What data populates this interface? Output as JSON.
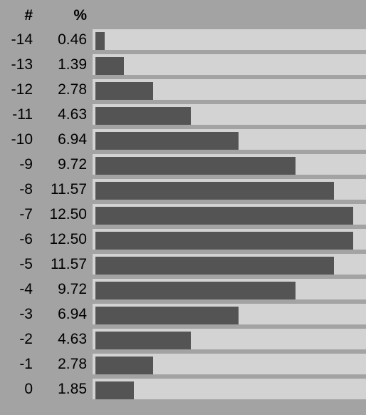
{
  "header": {
    "num_label": "#",
    "pct_label": "%"
  },
  "chart_data": {
    "type": "bar",
    "orientation": "horizontal",
    "categories": [
      "-14",
      "-13",
      "-12",
      "-11",
      "-10",
      "-9",
      "-8",
      "-7",
      "-6",
      "-5",
      "-4",
      "-3",
      "-2",
      "-1",
      "0"
    ],
    "value_labels": [
      "0.46",
      "1.39",
      "2.78",
      "4.63",
      "6.94",
      "9.72",
      "11.57",
      "12.50",
      "12.50",
      "11.57",
      "9.72",
      "6.94",
      "4.63",
      "2.78",
      "1.85"
    ],
    "values": [
      0.46,
      1.39,
      2.78,
      4.63,
      6.94,
      9.72,
      11.57,
      12.5,
      12.5,
      11.57,
      9.72,
      6.94,
      4.63,
      2.78,
      1.85
    ],
    "xlim": [
      0,
      12.5
    ],
    "colors": {
      "background": "#a3a3a3",
      "track": "#d3d3d3",
      "bar": "#545454"
    }
  }
}
